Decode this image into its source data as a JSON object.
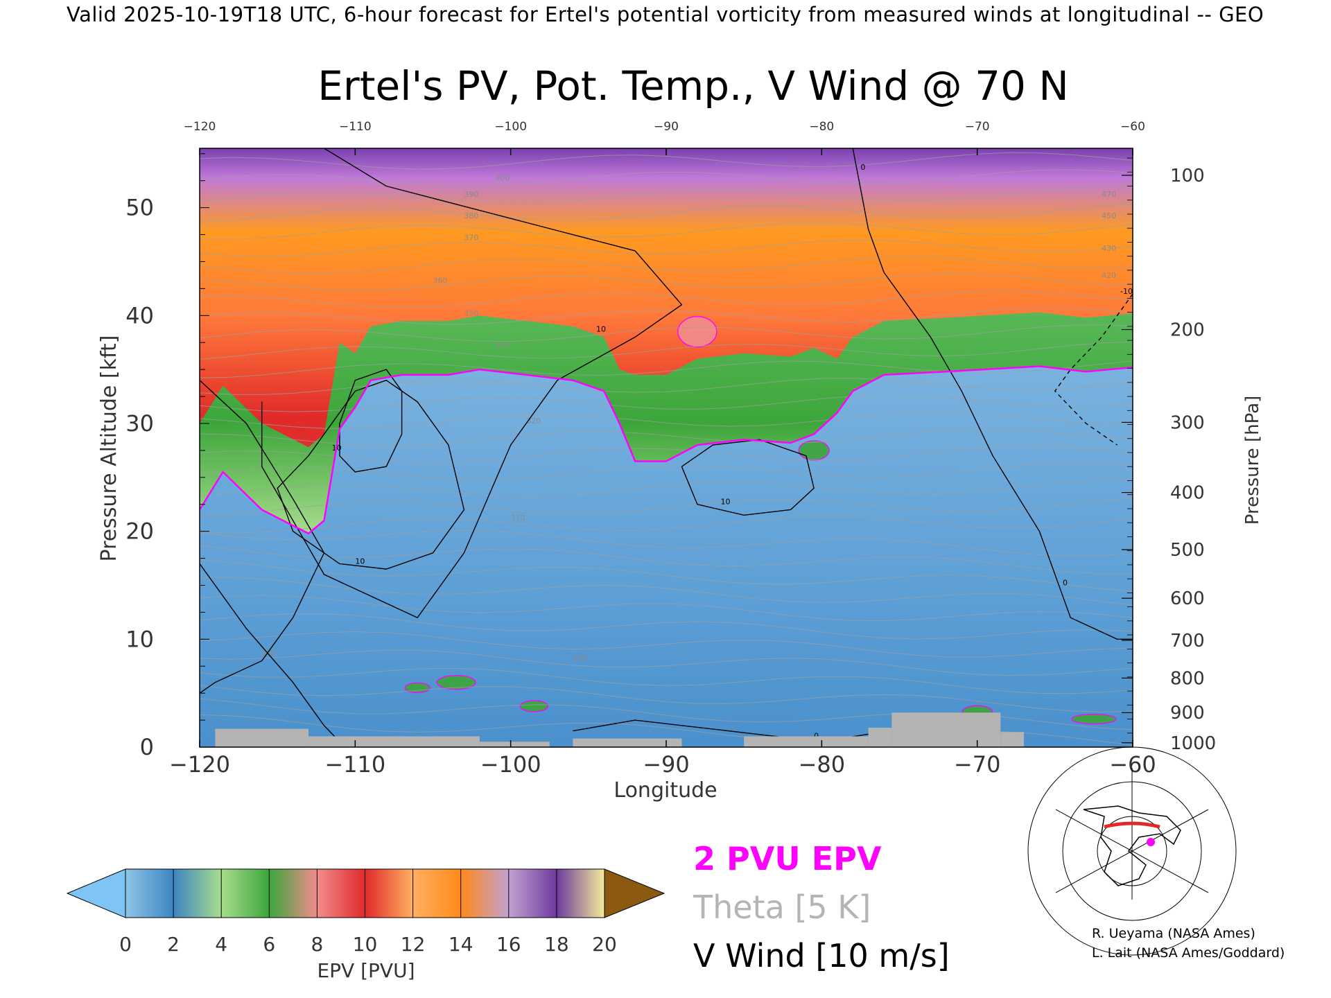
{
  "header": {
    "text": "Valid 2025-10-19T18 UTC, 6-hour forecast for Ertel's potential vorticity from measured winds at longitudinal -- GEO"
  },
  "chart_data": {
    "type": "heatmap",
    "title": "Ertel's PV, Pot. Temp., V Wind @ 70 N",
    "xlabel": "Longitude",
    "ylabel": "Pressure Altitude [kft]",
    "y2label": "Pressure [hPa]",
    "xlim": [
      -120,
      -60
    ],
    "ylim": [
      0,
      55.5
    ],
    "x_ticks": [
      "-120",
      "-110",
      "-100",
      "-90",
      "-80",
      "-70",
      "-60"
    ],
    "x_ticks_top": [
      "-120",
      "-110",
      "-100",
      "-90",
      "-80",
      "-70",
      "-60"
    ],
    "y_ticks": [
      "0",
      "10",
      "20",
      "30",
      "40",
      "50"
    ],
    "pressure_ticks": [
      {
        "label": "100",
        "alt_kft": 53.0
      },
      {
        "label": "200",
        "alt_kft": 38.7
      },
      {
        "label": "300",
        "alt_kft": 30.1
      },
      {
        "label": "400",
        "alt_kft": 23.6
      },
      {
        "label": "500",
        "alt_kft": 18.3
      },
      {
        "label": "600",
        "alt_kft": 13.8
      },
      {
        "label": "700",
        "alt_kft": 9.9
      },
      {
        "label": "800",
        "alt_kft": 6.4
      },
      {
        "label": "900",
        "alt_kft": 3.2
      },
      {
        "label": "1000",
        "alt_kft": 0.4
      }
    ],
    "tropopause_2pvu_kft": [
      {
        "lon": -120,
        "alt": 22.0
      },
      {
        "lon": -118.5,
        "alt": 25.5
      },
      {
        "lon": -116,
        "alt": 22.0
      },
      {
        "lon": -113,
        "alt": 19.8
      },
      {
        "lon": -112,
        "alt": 21.0
      },
      {
        "lon": -111,
        "alt": 29.5
      },
      {
        "lon": -110,
        "alt": 31.5
      },
      {
        "lon": -109,
        "alt": 34.0
      },
      {
        "lon": -107,
        "alt": 34.5
      },
      {
        "lon": -104,
        "alt": 34.5
      },
      {
        "lon": -102,
        "alt": 35.0
      },
      {
        "lon": -99,
        "alt": 34.5
      },
      {
        "lon": -96,
        "alt": 34.0
      },
      {
        "lon": -94,
        "alt": 33.0
      },
      {
        "lon": -93,
        "alt": 30.0
      },
      {
        "lon": -92,
        "alt": 26.5
      },
      {
        "lon": -90,
        "alt": 26.5
      },
      {
        "lon": -88,
        "alt": 28.0
      },
      {
        "lon": -85,
        "alt": 28.5
      },
      {
        "lon": -82,
        "alt": 28.2
      },
      {
        "lon": -80.5,
        "alt": 29.0
      },
      {
        "lon": -79,
        "alt": 31.0
      },
      {
        "lon": -78,
        "alt": 33.0
      },
      {
        "lon": -76,
        "alt": 34.5
      },
      {
        "lon": -72,
        "alt": 34.8
      },
      {
        "lon": -66,
        "alt": 35.3
      },
      {
        "lon": -63,
        "alt": 34.8
      },
      {
        "lon": -60,
        "alt": 35.2
      }
    ],
    "theta_levels_K": [
      "280",
      "290",
      "310",
      "320",
      "340",
      "350",
      "360",
      "370",
      "380",
      "390",
      "400",
      "420",
      "430",
      "450",
      "470"
    ],
    "vwind_contour_labels": [
      "10",
      "10",
      "10",
      "10",
      "0",
      "0",
      "0",
      "0",
      "-10"
    ],
    "colorbar": {
      "label": "EPV [PVU]",
      "ticks": [
        "0",
        "2",
        "4",
        "6",
        "8",
        "10",
        "12",
        "14",
        "16",
        "18",
        "20"
      ],
      "min": 0,
      "max": 20,
      "colors": [
        "#8fc4e6",
        "#3d86c2",
        "#a8dc8e",
        "#3ca63a",
        "#f28c8c",
        "#e02a2a",
        "#ffb060",
        "#ff8a1a",
        "#c2a2d2",
        "#6e3a9e",
        "#f4ec9a",
        "#8b5a10"
      ],
      "under_color": "#7ec4f5",
      "over_color": "#8b5a10"
    },
    "legend": {
      "pv": "2 PVU EPV",
      "theta": "Theta [5 K]",
      "wind": "V Wind [10 m/s]"
    },
    "colors": {
      "pv_line": "#ff00ff",
      "theta_line": "#a0a0a0",
      "terrain": "#b4b4b4"
    }
  },
  "credits": {
    "line1": "R. Ueyama (NASA Ames)",
    "line2": "L. Lait (NASA Ames/Goddard)"
  }
}
